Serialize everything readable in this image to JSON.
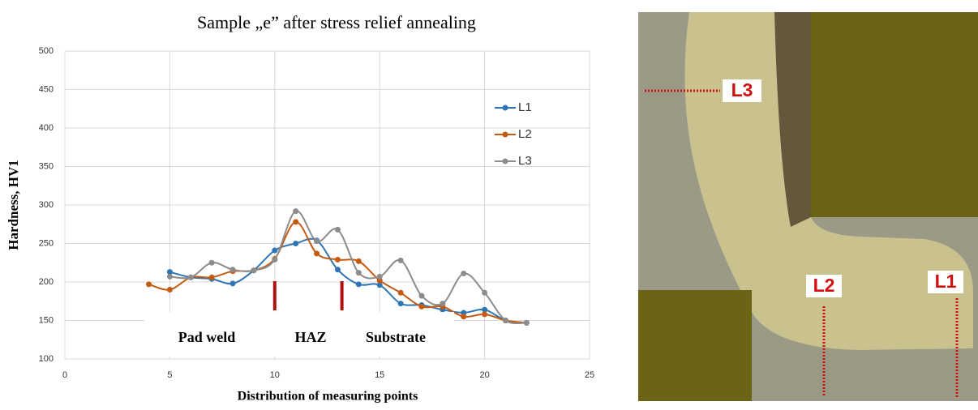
{
  "chart_data": {
    "type": "line",
    "title": "Sample „e” after stress relief annealing",
    "x_label": "Distribution of measuring points",
    "y_label": "Hardness, HV1",
    "x": [
      4,
      5,
      6,
      7,
      8,
      9,
      10,
      11,
      12,
      13,
      14,
      15,
      16,
      17,
      18,
      19,
      20,
      21,
      22
    ],
    "series": [
      {
        "name": "L1",
        "color": "#2e75b6",
        "values": [
          null,
          213,
          206,
          204,
          198,
          215,
          241,
          250,
          254,
          216,
          197,
          196,
          172,
          170,
          164,
          160,
          164,
          150,
          147
        ]
      },
      {
        "name": "L2",
        "color": "#c55a11",
        "values": [
          197,
          190,
          206,
          206,
          214,
          215,
          230,
          278,
          237,
          229,
          227,
          202,
          186,
          168,
          168,
          155,
          158,
          150,
          147
        ]
      },
      {
        "name": "L3",
        "color": "#8c8c8c",
        "values": [
          null,
          207,
          206,
          225,
          216,
          215,
          229,
          292,
          253,
          268,
          212,
          207,
          228,
          182,
          172,
          211,
          186,
          150,
          147
        ]
      }
    ],
    "xlim": [
      0,
      25
    ],
    "xticks": [
      0,
      5,
      10,
      15,
      20,
      25
    ],
    "ylim": [
      100,
      500
    ],
    "yticks": [
      100,
      150,
      200,
      250,
      300,
      350,
      400,
      450,
      500
    ],
    "grid": true,
    "legend": "right",
    "annotations": [
      "Pad weld",
      "HAZ",
      "Substrate"
    ],
    "boundaries": [
      10,
      13.2
    ]
  },
  "image": {
    "labels": [
      "L3",
      "L2",
      "L1"
    ]
  }
}
